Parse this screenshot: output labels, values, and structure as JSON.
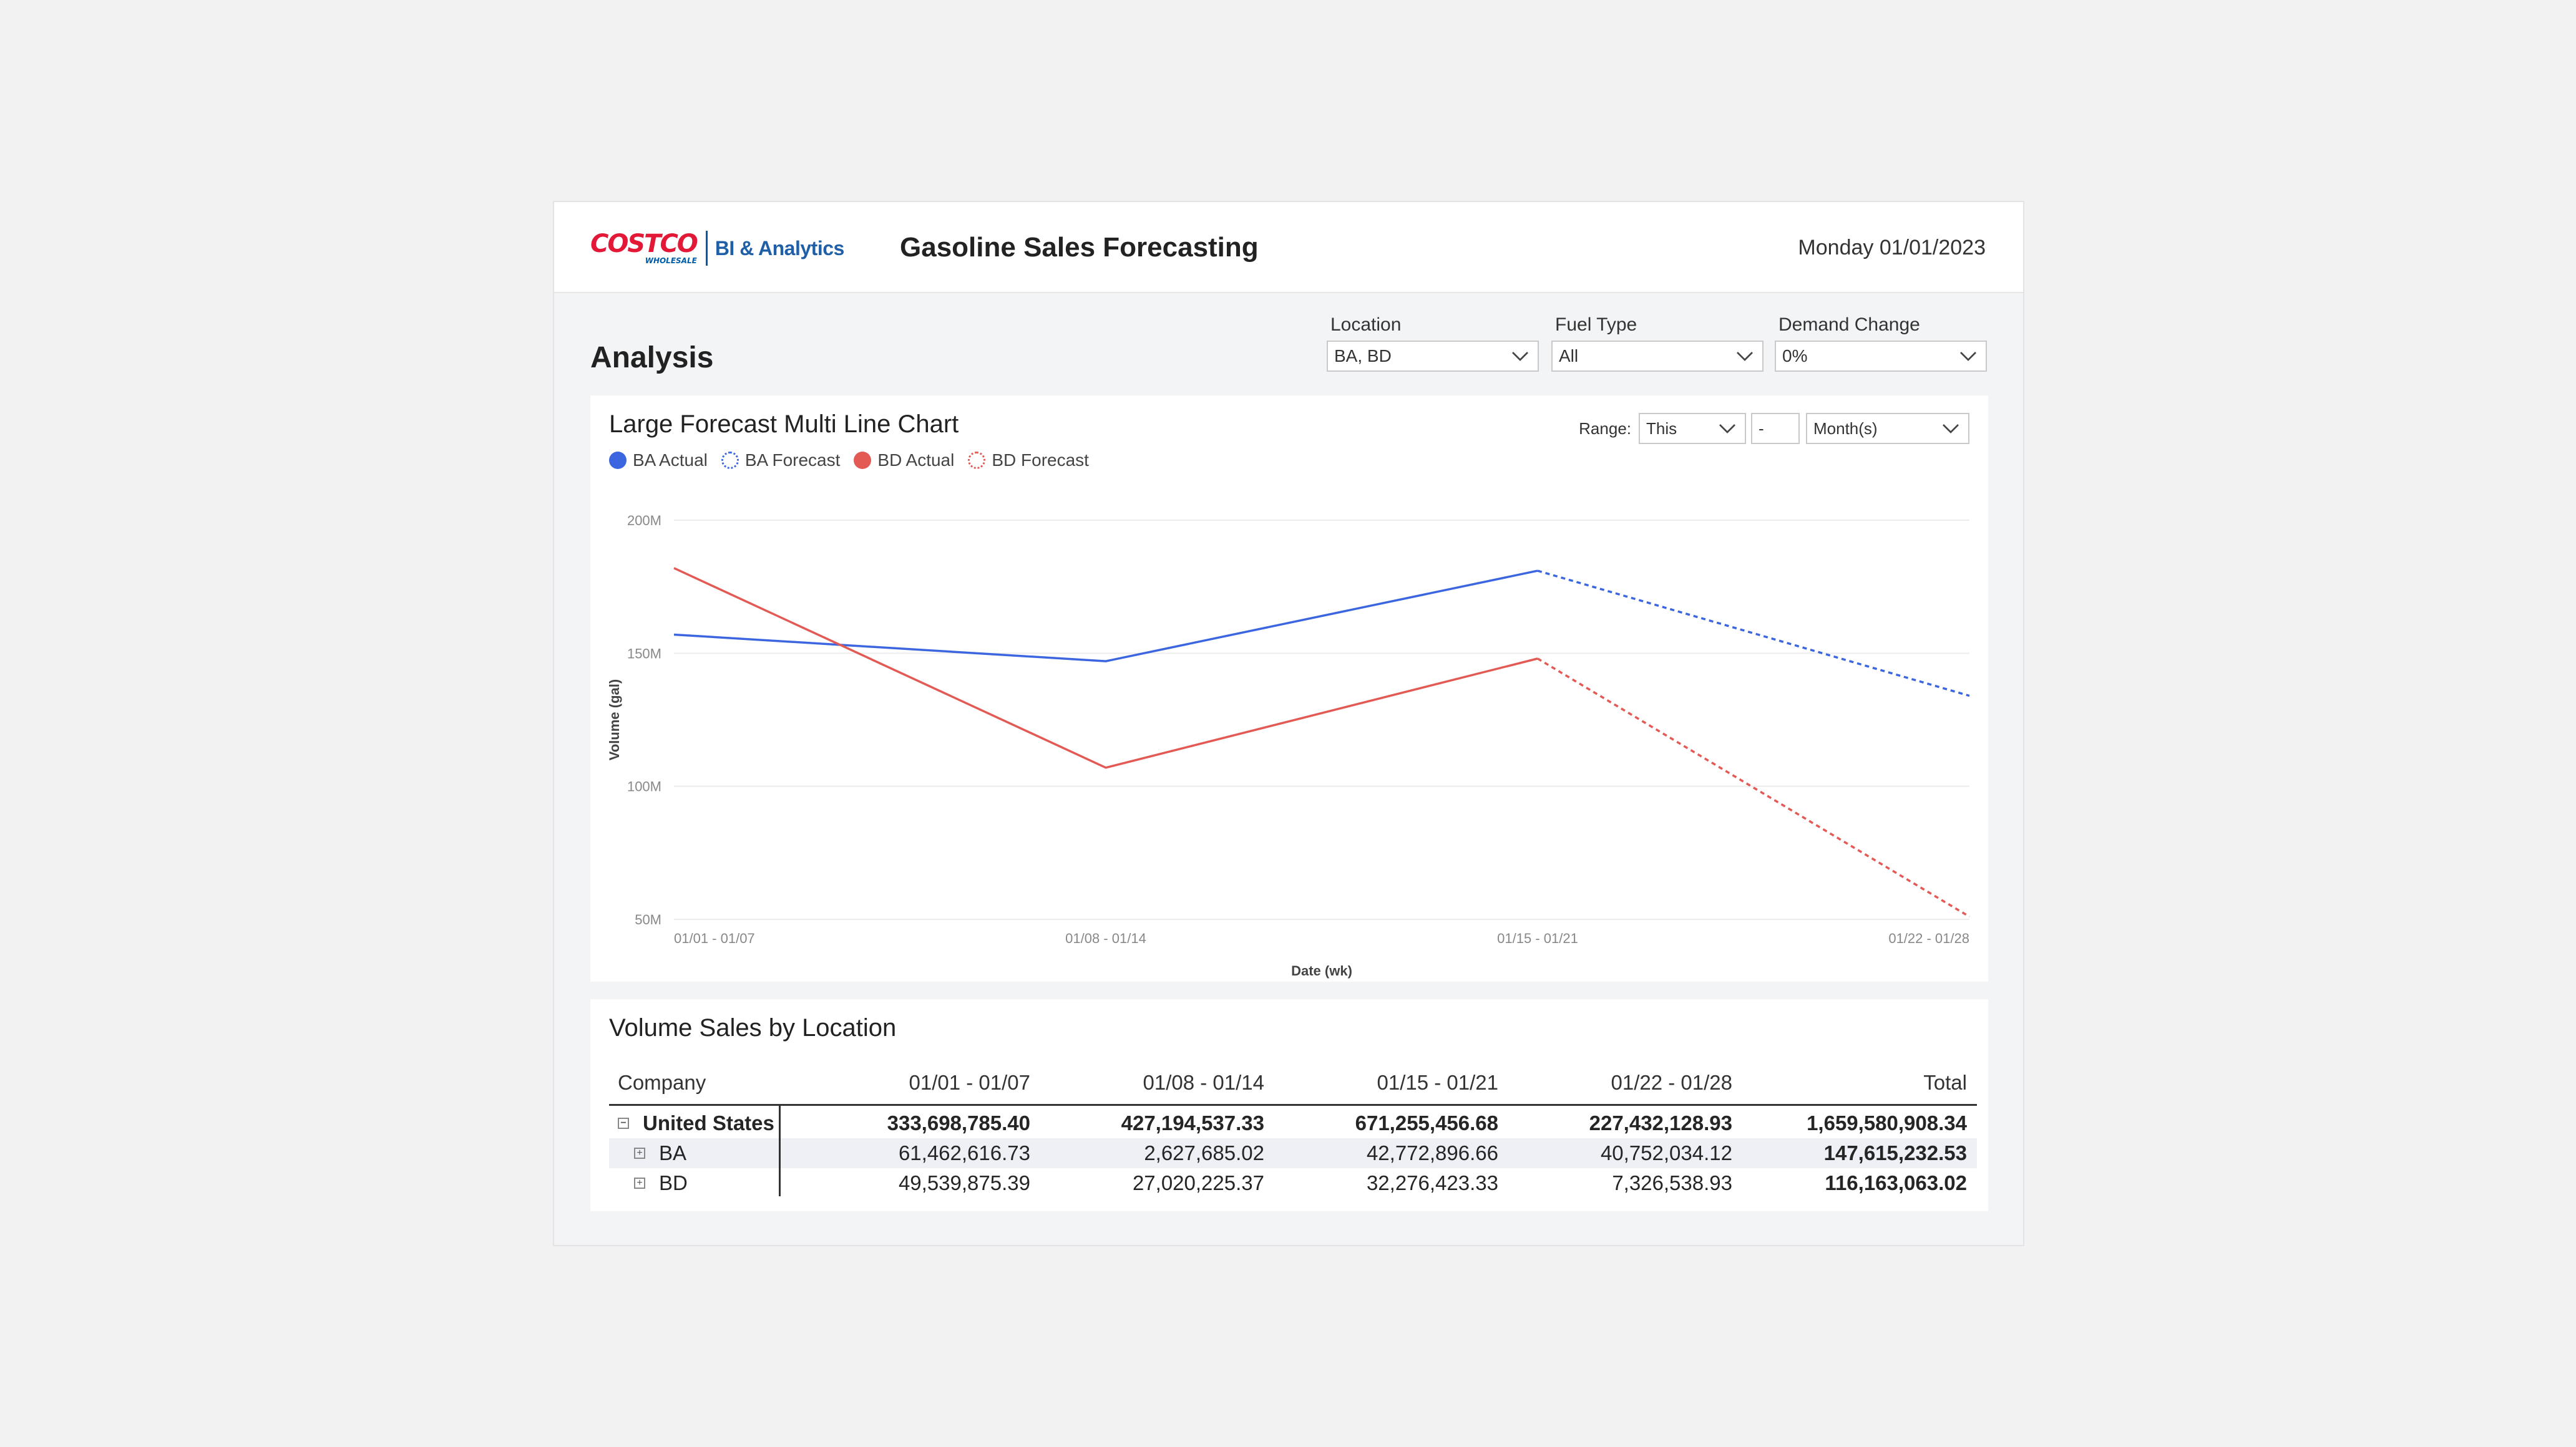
{
  "header": {
    "logo_word": "COSTCO",
    "logo_sub": "WHOLESALE",
    "logo_suffix": "BI & Analytics",
    "title": "Gasoline Sales Forecasting",
    "date": "Monday 01/01/2023"
  },
  "section_title": "Analysis",
  "filters": [
    {
      "label": "Location",
      "value": "BA, BD"
    },
    {
      "label": "Fuel Type",
      "value": "All"
    },
    {
      "label": "Demand Change",
      "value": "0%"
    }
  ],
  "chart_card": {
    "title": "Large Forecast Multi Line Chart",
    "range_label": "Range:",
    "range_select": "This",
    "range_number": "-",
    "range_unit": "Month(s)"
  },
  "colors": {
    "blue": "#3b66e0",
    "red": "#e35a55"
  },
  "chart_data": {
    "type": "line",
    "title": "Large Forecast Multi Line Chart",
    "xlabel": "Date (wk)",
    "ylabel": "Volume (gal)",
    "categories": [
      "01/01 - 01/07",
      "01/08 - 01/14",
      "01/15 - 01/21",
      "01/22 - 01/28"
    ],
    "yticks": [
      "50M",
      "100M",
      "150M",
      "200M"
    ],
    "ylim": [
      50,
      200
    ],
    "y_unit": "M",
    "legend_position": "top-left",
    "grid": true,
    "series": [
      {
        "name": "BA Actual",
        "color": "#3b66e0",
        "style": "solid",
        "values": [
          157,
          147,
          181,
          null
        ]
      },
      {
        "name": "BA Forecast",
        "color": "#3b66e0",
        "style": "dashed",
        "values": [
          null,
          null,
          181,
          134
        ]
      },
      {
        "name": "BD Actual",
        "color": "#e35a55",
        "style": "solid",
        "values": [
          182,
          107,
          148,
          null
        ]
      },
      {
        "name": "BD Forecast",
        "color": "#e35a55",
        "style": "dashed",
        "values": [
          null,
          null,
          148,
          51
        ]
      }
    ]
  },
  "table_card": {
    "title": "Volume Sales by Location",
    "columns": [
      "Company",
      "01/01 - 01/07",
      "01/08 - 01/14",
      "01/15 - 01/21",
      "01/22 - 01/28",
      "Total"
    ],
    "rows": [
      {
        "name": "United States",
        "level": 0,
        "bold": true,
        "expander": "⊟",
        "values": [
          "333,698,785.40",
          "427,194,537.33",
          "671,255,456.68",
          "227,432,128.93",
          "1,659,580,908.34"
        ]
      },
      {
        "name": "BA",
        "level": 1,
        "bold": false,
        "expander": "⊞",
        "values": [
          "61,462,616.73",
          "2,627,685.02",
          "42,772,896.66",
          "40,752,034.12",
          "147,615,232.53"
        ]
      },
      {
        "name": "BD",
        "level": 1,
        "bold": false,
        "expander": "⊞",
        "values": [
          "49,539,875.39",
          "27,020,225.37",
          "32,276,423.33",
          "7,326,538.93",
          "116,163,063.02"
        ]
      }
    ]
  }
}
